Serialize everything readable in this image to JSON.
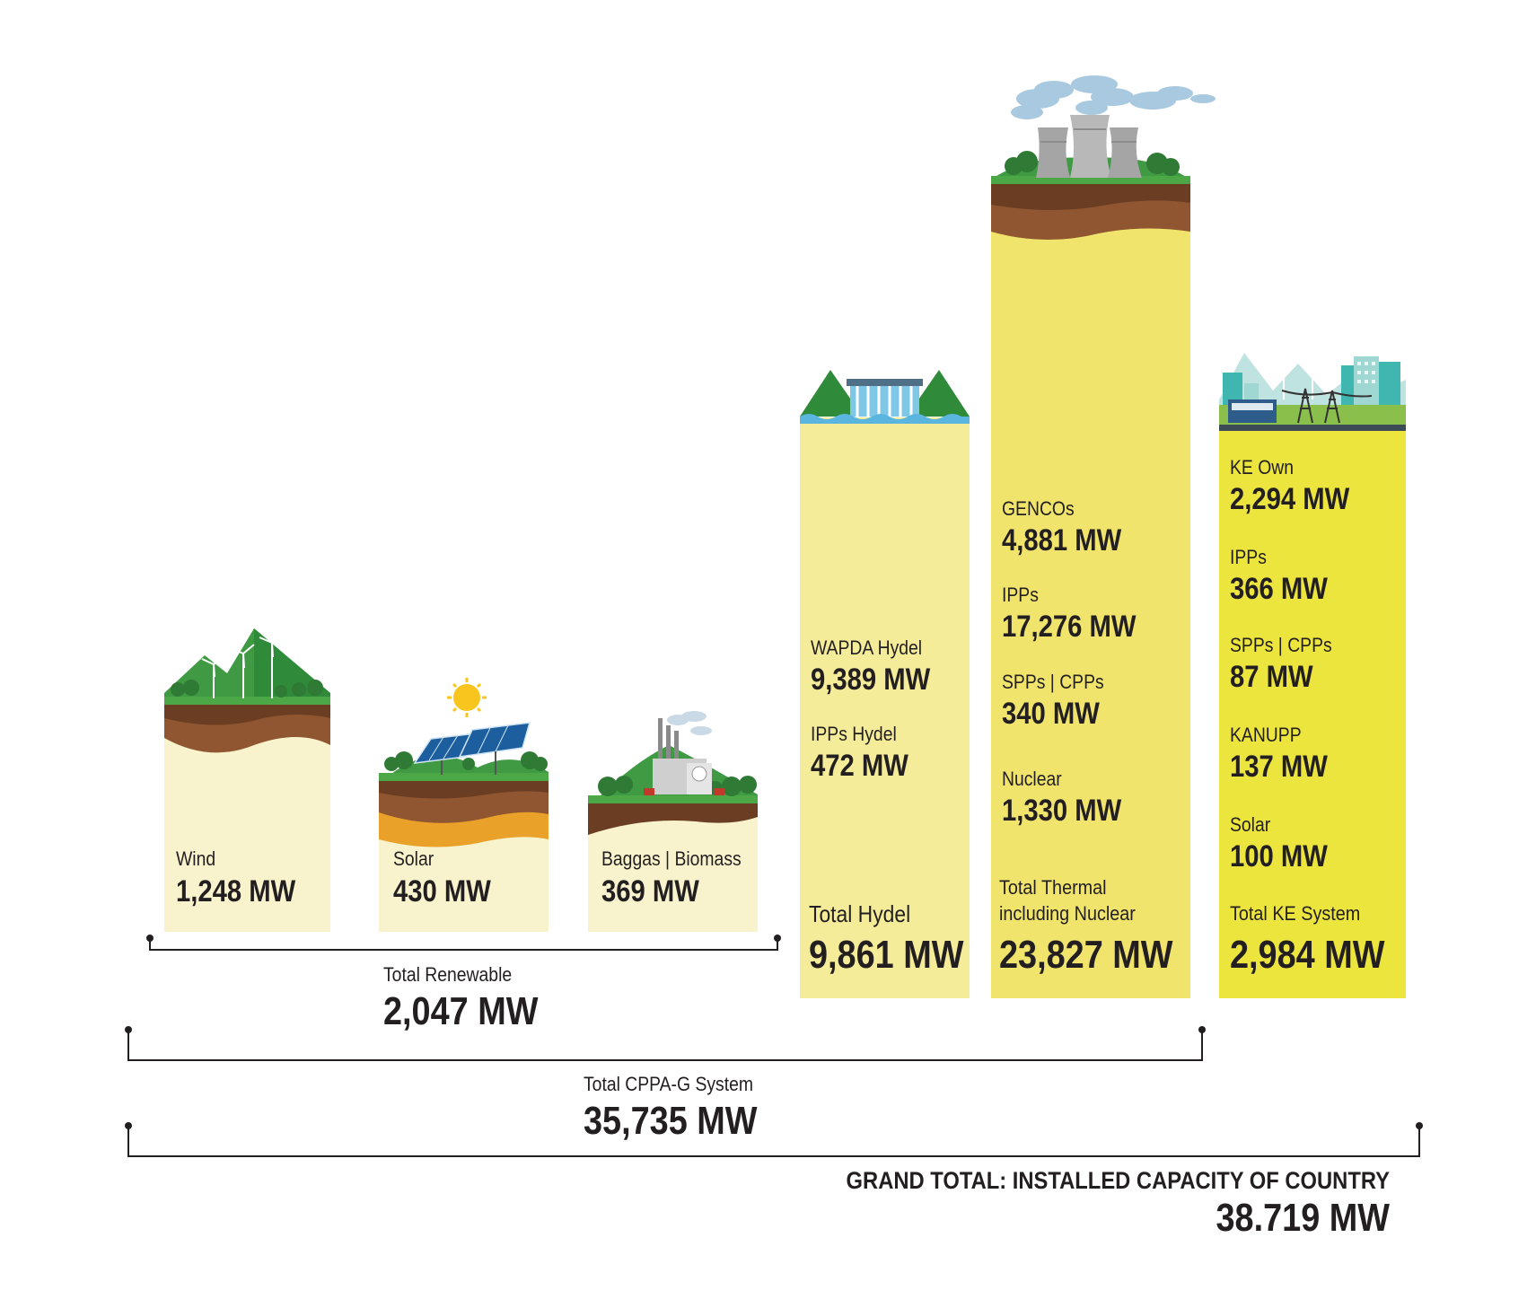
{
  "chart_data": {
    "type": "bar",
    "unit": "MW",
    "bars": [
      {
        "group": "renewable",
        "items": [
          {
            "label": "Wind",
            "value": "1,248 MW"
          }
        ]
      },
      {
        "group": "renewable",
        "items": [
          {
            "label": "Solar",
            "value": "430 MW"
          }
        ]
      },
      {
        "group": "renewable",
        "items": [
          {
            "label": "Baggas | Biomass",
            "value": "369 MW"
          }
        ]
      },
      {
        "group": "hydel",
        "items": [
          {
            "label": "WAPDA Hydel",
            "value": "9,389 MW"
          },
          {
            "label": "IPPs Hydel",
            "value": "472 MW"
          }
        ],
        "total_label": "Total Hydel",
        "total_value": "9,861 MW"
      },
      {
        "group": "thermal",
        "items": [
          {
            "label": "GENCOs",
            "value": "4,881 MW"
          },
          {
            "label": "IPPs",
            "value": "17,276 MW"
          },
          {
            "label": "SPPs | CPPs",
            "value": "340 MW"
          },
          {
            "label": "Nuclear",
            "value": "1,330 MW"
          }
        ],
        "total_label": "Total Thermal including Nuclear",
        "total_label_lines": [
          "Total Thermal",
          "including Nuclear"
        ],
        "total_value": "23,827 MW"
      },
      {
        "group": "ke",
        "items": [
          {
            "label": "KE Own",
            "value": "2,294 MW"
          },
          {
            "label": "IPPs",
            "value": "366 MW"
          },
          {
            "label": "SPPs | CPPs",
            "value": "87 MW"
          },
          {
            "label": "KANUPP",
            "value": "137 MW"
          },
          {
            "label": "Solar",
            "value": "100 MW"
          }
        ],
        "total_label": "Total KE System",
        "total_value": "2,984 MW"
      }
    ],
    "brackets": [
      {
        "label": "Total Renewable",
        "value": "2,047 MW"
      },
      {
        "label": "Total CPPA-G System",
        "value": "35,735 MW"
      },
      {
        "label": "GRAND TOTAL: INSTALLED CAPACITY OF COUNTRY",
        "value": "38.719 MW"
      }
    ]
  },
  "colors": {
    "pale_yellow": "#f8f3cd",
    "light_yellow": "#f5ec9a",
    "mid_yellow": "#f0e46c",
    "bright_yellow": "#ece53e",
    "grass": "#4ca846",
    "soil_dark": "#6b3d22",
    "soil": "#8f5631",
    "orange_soil": "#e9a129",
    "sky_blue": "#a8c9df",
    "text": "#231f20"
  },
  "icons": [
    "wind-turbines-hill-icon",
    "solar-panels-icon",
    "biomass-plant-icon",
    "hydro-dam-icon",
    "cooling-towers-icon",
    "ke-city-grid-icon"
  ]
}
